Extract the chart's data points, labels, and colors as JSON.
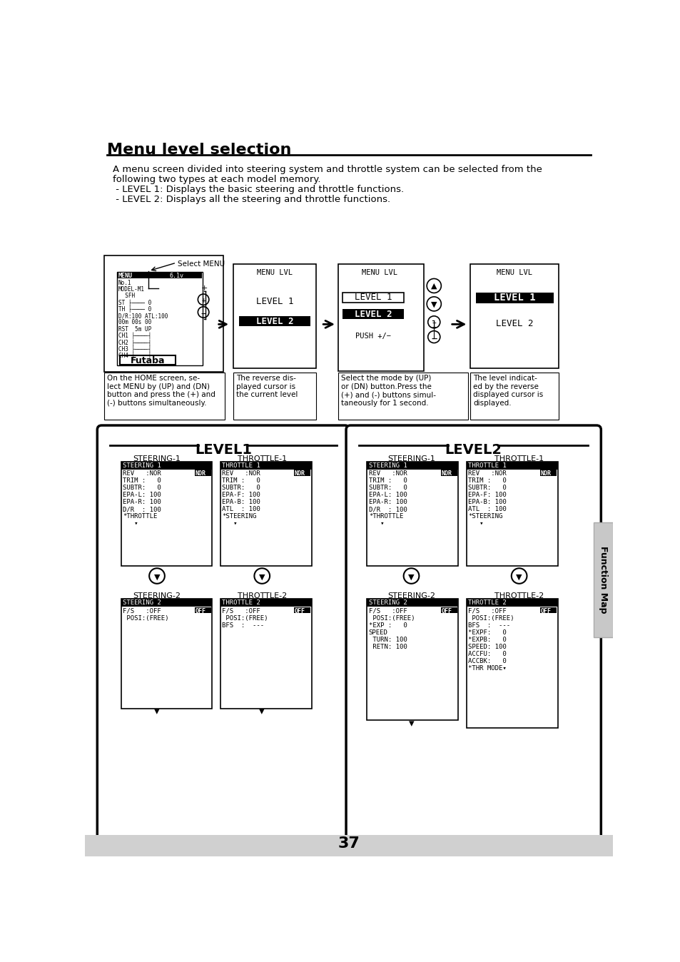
{
  "title": "Menu level selection",
  "bg_color": "#ffffff",
  "intro_lines": [
    "A menu screen divided into steering system and throttle system can be selected from the",
    "following two types at each model memory.",
    " - LEVEL 1: Displays the basic steering and throttle functions.",
    " - LEVEL 2: Displays all the steering and throttle functions."
  ],
  "page_number": "37",
  "tab_label": "Function Map",
  "step_captions": [
    "On the HOME screen, se-\nlect MENU by (UP) and (DN)\nbutton and press the (+) and\n(-) buttons simultaneously.",
    "The reverse dis-\nplayed cursor is\nthe current level",
    "Select the mode by (UP)\nor (DN) button.Press the\n(+) and (-) buttons simul-\ntaneously for 1 second.",
    "The level indicat-\ned by the reverse\ndisplayed cursor is\ndisplayed."
  ]
}
